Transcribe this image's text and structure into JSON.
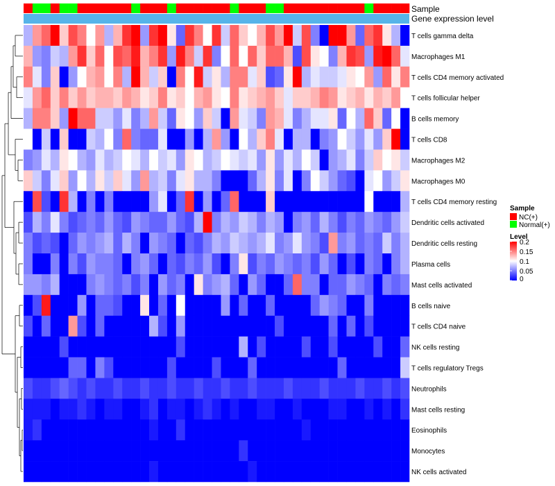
{
  "chart_data": {
    "type": "heatmap",
    "annotation_labels": {
      "sample": "Sample",
      "gene_expression": "Gene expression level"
    },
    "sample_annotation": [
      "NC(+)",
      "Normal(+)",
      "Normal(+)",
      "NC(+)",
      "Normal(+)",
      "Normal(+)",
      "NC(+)",
      "NC(+)",
      "NC(+)",
      "NC(+)",
      "NC(+)",
      "NC(+)",
      "Normal(+)",
      "NC(+)",
      "NC(+)",
      "NC(+)",
      "Normal(+)",
      "NC(+)",
      "NC(+)",
      "NC(+)",
      "NC(+)",
      "NC(+)",
      "NC(+)",
      "Normal(+)",
      "NC(+)",
      "NC(+)",
      "NC(+)",
      "Normal(+)",
      "Normal(+)",
      "NC(+)",
      "NC(+)",
      "NC(+)",
      "NC(+)",
      "NC(+)",
      "NC(+)",
      "NC(+)",
      "NC(+)",
      "NC(+)",
      "Normal(+)",
      "NC(+)",
      "NC(+)",
      "NC(+)",
      "NC(+)"
    ],
    "rows": [
      "T cells gamma delta",
      "Macrophages M1",
      "T cells CD4 memory activated",
      "T cells follicular helper",
      "B cells memory",
      "T cells CD8",
      "Macrophages M2",
      "Macrophages M0",
      "T cells CD4 memory resting",
      "Dendritic cells activated",
      "Dendritic cells resting",
      "Plasma cells",
      "Mast cells activated",
      "B cells naive",
      "T cells CD4 naive",
      "NK cells resting",
      "T cells regulatory  Tregs",
      "Neutrophils",
      "Mast cells resting",
      "Eosinophils",
      "Monocytes",
      "NK cells activated"
    ],
    "values": [
      [
        0.07,
        0.14,
        0.16,
        0.2,
        0.12,
        0.17,
        0.15,
        0.1,
        0.14,
        0.07,
        0.13,
        0.18,
        0.2,
        0.06,
        0.18,
        0.2,
        0.11,
        0.04,
        0.18,
        0.15,
        0.1,
        0.18,
        0.08,
        0.16,
        0.12,
        0.1,
        0.13,
        0.17,
        0.14,
        0.2,
        0.08,
        0.17,
        0.05,
        0.0,
        0.2,
        0.2,
        0.14,
        0.04,
        0.16,
        0.18,
        0.11,
        0.07,
        0.0
      ],
      [
        0.13,
        0.06,
        0.05,
        0.08,
        0.07,
        0.14,
        0.18,
        0.12,
        0.16,
        0.1,
        0.17,
        0.16,
        0.19,
        0.13,
        0.15,
        0.18,
        0.06,
        0.19,
        0.15,
        0.08,
        0.18,
        0.05,
        0.1,
        0.16,
        0.1,
        0.16,
        0.12,
        0.16,
        0.16,
        0.13,
        0.03,
        0.17,
        0.11,
        0.1,
        0.05,
        0.13,
        0.18,
        0.17,
        0.06,
        0.19,
        0.2,
        0.16,
        0.09
      ],
      [
        0.15,
        0.09,
        0.05,
        0.12,
        0.0,
        0.06,
        0.1,
        0.13,
        0.14,
        0.1,
        0.15,
        0.07,
        0.2,
        0.13,
        0.08,
        0.12,
        0.0,
        0.15,
        0.1,
        0.19,
        0.08,
        0.11,
        0.07,
        0.15,
        0.15,
        0.09,
        0.12,
        0.03,
        0.04,
        0.11,
        0.2,
        0.07,
        0.09,
        0.08,
        0.08,
        0.09,
        0.11,
        0.1,
        0.14,
        0.06,
        0.16,
        0.11,
        0.15
      ],
      [
        0.09,
        0.14,
        0.16,
        0.12,
        0.15,
        0.12,
        0.14,
        0.12,
        0.13,
        0.13,
        0.12,
        0.14,
        0.13,
        0.11,
        0.12,
        0.15,
        0.11,
        0.12,
        0.1,
        0.13,
        0.14,
        0.11,
        0.1,
        0.15,
        0.11,
        0.12,
        0.13,
        0.14,
        0.12,
        0.09,
        0.12,
        0.12,
        0.13,
        0.15,
        0.14,
        0.11,
        0.12,
        0.13,
        0.11,
        0.13,
        0.12,
        0.14,
        0.1
      ],
      [
        0.07,
        0.15,
        0.15,
        0.12,
        0.06,
        0.2,
        0.16,
        0.16,
        0.08,
        0.08,
        0.06,
        0.09,
        0.05,
        0.07,
        0.14,
        0.08,
        0.04,
        0.11,
        0.1,
        0.06,
        0.12,
        0.08,
        0.0,
        0.14,
        0.09,
        0.08,
        0.05,
        0.14,
        0.13,
        0.09,
        0.05,
        0.07,
        0.09,
        0.09,
        0.11,
        0.04,
        0.1,
        0.07,
        0.16,
        0.12,
        0.04,
        0.1,
        0.0
      ],
      [
        0.1,
        0.0,
        0.08,
        0.0,
        0.12,
        0.0,
        0.0,
        0.08,
        0.07,
        0.1,
        0.05,
        0.16,
        0.05,
        0.04,
        0.04,
        0.09,
        0.0,
        0.0,
        0.06,
        0.0,
        0.07,
        0.14,
        0.06,
        0.0,
        0.1,
        0.07,
        0.12,
        0.15,
        0.09,
        0.0,
        0.07,
        0.07,
        0.0,
        0.05,
        0.06,
        0.1,
        0.08,
        0.06,
        0.09,
        0.06,
        0.12,
        0.2,
        0.0
      ],
      [
        0.05,
        0.06,
        0.09,
        0.07,
        0.11,
        0.1,
        0.07,
        0.06,
        0.09,
        0.07,
        0.08,
        0.1,
        0.09,
        0.07,
        0.1,
        0.08,
        0.09,
        0.06,
        0.11,
        0.1,
        0.07,
        0.08,
        0.1,
        0.09,
        0.08,
        0.09,
        0.06,
        0.11,
        0.06,
        0.09,
        0.07,
        0.1,
        0.08,
        0.0,
        0.06,
        0.07,
        0.09,
        0.05,
        0.08,
        0.12,
        0.1,
        0.11,
        0.08
      ],
      [
        0.12,
        0.08,
        0.05,
        0.09,
        0.12,
        0.06,
        0.1,
        0.07,
        0.11,
        0.08,
        0.12,
        0.09,
        0.06,
        0.14,
        0.07,
        0.08,
        0.05,
        0.09,
        0.11,
        0.07,
        0.07,
        0.05,
        0.0,
        0.0,
        0.0,
        0.04,
        0.07,
        0.11,
        0.05,
        0.09,
        0.0,
        0.05,
        0.1,
        0.08,
        0.06,
        0.04,
        0.03,
        0.0,
        0.09,
        0.1,
        0.06,
        0.08,
        0.11
      ],
      [
        0.0,
        0.17,
        0.03,
        0.0,
        0.18,
        0.07,
        0.0,
        0.05,
        0.0,
        0.05,
        0.0,
        0.0,
        0.0,
        0.0,
        0.06,
        0.09,
        0.0,
        0.04,
        0.18,
        0.0,
        0.06,
        0.0,
        0.04,
        0.16,
        0.0,
        0.0,
        0.0,
        0.12,
        0.0,
        0.0,
        0.0,
        0.0,
        0.0,
        0.0,
        0.0,
        0.0,
        0.0,
        0.0,
        0.1,
        0.0,
        0.0,
        0.0,
        0.07
      ],
      [
        0.03,
        0.07,
        0.05,
        0.09,
        0.05,
        0.03,
        0.04,
        0.05,
        0.04,
        0.06,
        0.04,
        0.03,
        0.06,
        0.05,
        0.04,
        0.04,
        0.06,
        0.04,
        0.03,
        0.07,
        0.2,
        0.05,
        0.07,
        0.06,
        0.08,
        0.07,
        0.05,
        0.07,
        0.06,
        0.0,
        0.05,
        0.06,
        0.04,
        0.07,
        0.05,
        0.03,
        0.05,
        0.04,
        0.06,
        0.05,
        0.04,
        0.06,
        0.08
      ],
      [
        0.05,
        0.03,
        0.04,
        0.03,
        0.0,
        0.04,
        0.06,
        0.05,
        0.06,
        0.07,
        0.04,
        0.07,
        0.05,
        0.0,
        0.06,
        0.05,
        0.04,
        0.0,
        0.04,
        0.03,
        0.05,
        0.07,
        0.06,
        0.08,
        0.07,
        0.06,
        0.07,
        0.09,
        0.05,
        0.06,
        0.09,
        0.06,
        0.05,
        0.03,
        0.14,
        0.05,
        0.06,
        0.04,
        0.05,
        0.04,
        0.08,
        0.05,
        0.07
      ],
      [
        0.05,
        0.0,
        0.0,
        0.05,
        0.0,
        0.05,
        0.03,
        0.06,
        0.05,
        0.05,
        0.04,
        0.0,
        0.05,
        0.06,
        0.04,
        0.0,
        0.04,
        0.03,
        0.05,
        0.04,
        0.06,
        0.03,
        0.0,
        0.05,
        0.11,
        0.03,
        0.05,
        0.04,
        0.06,
        0.05,
        0.04,
        0.05,
        0.03,
        0.06,
        0.04,
        0.0,
        0.03,
        0.0,
        0.05,
        0.04,
        0.0,
        0.05,
        0.07
      ],
      [
        0.06,
        0.06,
        0.05,
        0.07,
        0.0,
        0.0,
        0.0,
        0.05,
        0.06,
        0.05,
        0.04,
        0.05,
        0.03,
        0.05,
        0.0,
        0.06,
        0.04,
        0.05,
        0.0,
        0.11,
        0.05,
        0.06,
        0.07,
        0.04,
        0.0,
        0.06,
        0.04,
        0.0,
        0.0,
        0.04,
        0.16,
        0.05,
        0.05,
        0.0,
        0.04,
        0.04,
        0.06,
        0.05,
        0.04,
        0.0,
        0.05,
        0.04,
        0.05
      ],
      [
        0.0,
        0.03,
        0.19,
        0.0,
        0.0,
        0.0,
        0.06,
        0.0,
        0.04,
        0.04,
        0.03,
        0.0,
        0.0,
        0.11,
        0.0,
        0.04,
        0.0,
        0.1,
        0.0,
        0.0,
        0.0,
        0.0,
        0.06,
        0.0,
        0.04,
        0.0,
        0.0,
        0.04,
        0.0,
        0.0,
        0.0,
        0.0,
        0.04,
        0.06,
        0.05,
        0.04,
        0.0,
        0.0,
        0.05,
        0.0,
        0.0,
        0.0,
        0.0
      ],
      [
        0.03,
        0.0,
        0.04,
        0.0,
        0.0,
        0.14,
        0.03,
        0.0,
        0.04,
        0.0,
        0.0,
        0.0,
        0.0,
        0.0,
        0.07,
        0.03,
        0.0,
        0.06,
        0.0,
        0.0,
        0.0,
        0.0,
        0.0,
        0.0,
        0.0,
        0.0,
        0.0,
        0.0,
        0.03,
        0.0,
        0.0,
        0.0,
        0.0,
        0.0,
        0.04,
        0.0,
        0.04,
        0.0,
        0.03,
        0.0,
        0.0,
        0.0,
        0.0
      ],
      [
        0.0,
        0.0,
        0.0,
        0.0,
        0.03,
        0.0,
        0.0,
        0.0,
        0.0,
        0.0,
        0.0,
        0.0,
        0.0,
        0.0,
        0.0,
        0.0,
        0.0,
        0.03,
        0.0,
        0.0,
        0.0,
        0.0,
        0.0,
        0.0,
        0.07,
        0.0,
        0.03,
        0.0,
        0.0,
        0.0,
        0.0,
        0.03,
        0.0,
        0.0,
        0.03,
        0.0,
        0.0,
        0.0,
        0.0,
        0.03,
        0.0,
        0.0,
        0.04
      ],
      [
        0.0,
        0.0,
        0.0,
        0.0,
        0.0,
        0.04,
        0.04,
        0.0,
        0.05,
        0.03,
        0.0,
        0.0,
        0.0,
        0.0,
        0.0,
        0.0,
        0.03,
        0.0,
        0.0,
        0.0,
        0.0,
        0.03,
        0.0,
        0.0,
        0.0,
        0.04,
        0.0,
        0.0,
        0.0,
        0.0,
        0.0,
        0.0,
        0.0,
        0.0,
        0.0,
        0.04,
        0.0,
        0.0,
        0.0,
        0.0,
        0.0,
        0.0,
        0.08
      ],
      [
        0.03,
        0.02,
        0.02,
        0.03,
        0.04,
        0.03,
        0.02,
        0.03,
        0.02,
        0.02,
        0.03,
        0.02,
        0.02,
        0.03,
        0.02,
        0.02,
        0.03,
        0.02,
        0.02,
        0.03,
        0.02,
        0.02,
        0.03,
        0.02,
        0.02,
        0.03,
        0.02,
        0.02,
        0.02,
        0.03,
        0.02,
        0.02,
        0.02,
        0.03,
        0.02,
        0.02,
        0.02,
        0.03,
        0.02,
        0.02,
        0.03,
        0.02,
        0.03
      ],
      [
        0.01,
        0.01,
        0.01,
        0.0,
        0.01,
        0.01,
        0.02,
        0.01,
        0.0,
        0.01,
        0.01,
        0.0,
        0.0,
        0.01,
        0.02,
        0.0,
        0.01,
        0.01,
        0.0,
        0.01,
        0.02,
        0.01,
        0.0,
        0.01,
        0.0,
        0.0,
        0.01,
        0.01,
        0.0,
        0.0,
        0.01,
        0.0,
        0.0,
        0.0,
        0.01,
        0.01,
        0.0,
        0.0,
        0.01,
        0.0,
        0.01,
        0.0,
        0.02
      ],
      [
        0.01,
        0.02,
        0.0,
        0.0,
        0.0,
        0.0,
        0.0,
        0.0,
        0.0,
        0.0,
        0.0,
        0.0,
        0.0,
        0.0,
        0.01,
        0.0,
        0.0,
        0.02,
        0.0,
        0.0,
        0.0,
        0.0,
        0.0,
        0.0,
        0.0,
        0.0,
        0.0,
        0.0,
        0.0,
        0.0,
        0.0,
        0.01,
        0.0,
        0.0,
        0.0,
        0.0,
        0.0,
        0.0,
        0.0,
        0.0,
        0.0,
        0.0,
        0.0
      ],
      [
        0.0,
        0.0,
        0.0,
        0.0,
        0.0,
        0.0,
        0.0,
        0.0,
        0.0,
        0.0,
        0.0,
        0.0,
        0.0,
        0.0,
        0.0,
        0.0,
        0.0,
        0.0,
        0.0,
        0.0,
        0.0,
        0.0,
        0.0,
        0.0,
        0.02,
        0.0,
        0.0,
        0.0,
        0.0,
        0.0,
        0.0,
        0.0,
        0.0,
        0.0,
        0.0,
        0.0,
        0.0,
        0.0,
        0.0,
        0.0,
        0.0,
        0.0,
        0.0
      ],
      [
        0.0,
        0.0,
        0.0,
        0.0,
        0.0,
        0.0,
        0.0,
        0.0,
        0.0,
        0.0,
        0.0,
        0.0,
        0.0,
        0.0,
        0.01,
        0.0,
        0.0,
        0.0,
        0.0,
        0.0,
        0.0,
        0.0,
        0.0,
        0.0,
        0.0,
        0.01,
        0.0,
        0.0,
        0.0,
        0.0,
        0.0,
        0.0,
        0.0,
        0.0,
        0.0,
        0.0,
        0.0,
        0.0,
        0.0,
        0.0,
        0.0,
        0.0,
        0.0
      ]
    ],
    "legend_sample": {
      "title": "Sample",
      "items": [
        {
          "label": "NC(+)",
          "color": "#ff0000"
        },
        {
          "label": "Normal(+)",
          "color": "#00ff00"
        }
      ]
    },
    "legend_level": {
      "title": "Level",
      "range": [
        0,
        0.2
      ],
      "ticks": [
        {
          "value": 0.2,
          "label": "0.2"
        },
        {
          "value": 0.15,
          "label": "0.15"
        },
        {
          "value": 0.1,
          "label": "0.1"
        },
        {
          "value": 0.05,
          "label": "0.05"
        },
        {
          "value": 0,
          "label": "0"
        }
      ]
    },
    "colors": {
      "low": "#0000ff",
      "mid": "#ffffff",
      "high": "#ff0000",
      "gene_expression_bar": "#56b4e9"
    }
  }
}
